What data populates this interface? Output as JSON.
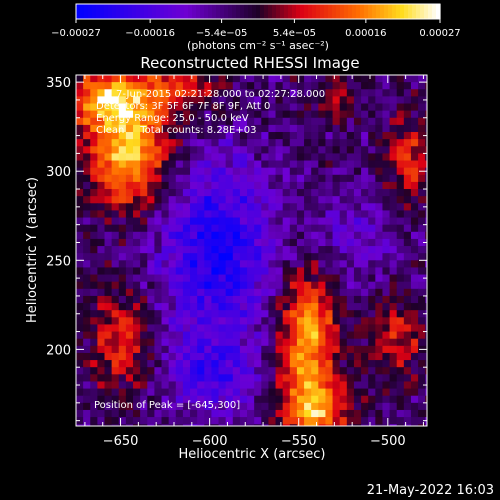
{
  "chart_data": {
    "type": "heatmap",
    "title": "Reconstructed RHESSI Image",
    "xlabel": "Heliocentric X (arcsec)",
    "ylabel": "Heliocentric Y (arcsec)",
    "xlim": [
      -675,
      -478
    ],
    "ylim": [
      157,
      354
    ],
    "x_ticks": [
      -650,
      -600,
      -550,
      -500
    ],
    "x_tick_labels": [
      "−650",
      "−600",
      "−550",
      "−500"
    ],
    "y_ticks": [
      200,
      250,
      300,
      350
    ],
    "y_tick_labels": [
      "200",
      "250",
      "300",
      "350"
    ],
    "colorbar": {
      "min": -0.00027,
      "max": 0.00027,
      "tick_values": [
        -0.00027,
        -0.00016,
        -5.4e-05,
        5.4e-05,
        0.00016,
        0.00027
      ],
      "tick_labels": [
        "−0.00027",
        "−0.00016",
        "−5.4e−05",
        "5.4e−05",
        "0.00016",
        "0.00027"
      ],
      "unit_label": "(photons cm⁻² s⁻¹ asec⁻²)"
    },
    "annotations": [
      "7-Jun-2015 02:21:28.000 to 02:27:28.000",
      "Detectors: 3F 5F 6F 7F 8F 9F, Att 0",
      "Energy Range: 25.0 - 50.0 keV",
      "Clean     Total counts: 8.28E+03"
    ],
    "peak_label": "Position of Peak = [-645,300]",
    "peak_position": [
      -645,
      300
    ],
    "grid": false,
    "pixel_size_arcsec": 4
  },
  "footer": {
    "timestamp": "21-May-2022 16:03"
  }
}
